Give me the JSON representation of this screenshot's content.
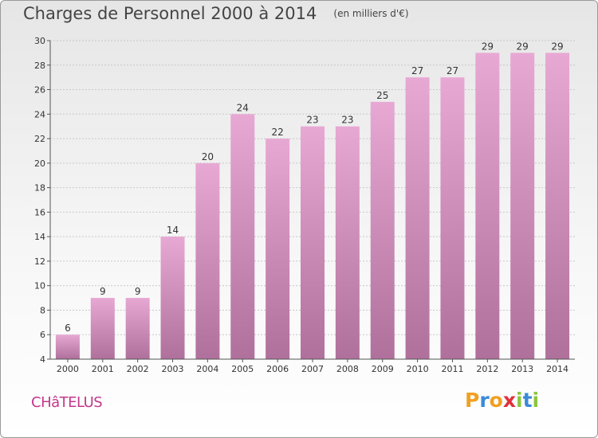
{
  "chart_data": {
    "type": "bar",
    "title": "Charges de Personnel 2000 à 2014",
    "subtitle": "(en milliers d'€)",
    "categories": [
      "2000",
      "2001",
      "2002",
      "2003",
      "2004",
      "2005",
      "2006",
      "2007",
      "2008",
      "2009",
      "2010",
      "2011",
      "2012",
      "2013",
      "2014"
    ],
    "values": [
      6,
      9,
      9,
      14,
      20,
      24,
      22,
      23,
      23,
      25,
      27,
      27,
      29,
      29,
      29
    ],
    "ylim": [
      4,
      30
    ],
    "yticks": [
      4,
      6,
      8,
      10,
      12,
      14,
      16,
      18,
      20,
      22,
      24,
      26,
      28,
      30
    ],
    "grid": true,
    "bar_color_top": "#e8a8d4",
    "bar_color_bottom": "#b0709c"
  },
  "commune": "CHâTELUS",
  "logo": {
    "text": "Proxiti",
    "colors": [
      "#f0a020",
      "#3a8ad8",
      "#f0a020",
      "#e0303a",
      "#8cc63e",
      "#3a8ad8",
      "#8cc63e"
    ]
  }
}
